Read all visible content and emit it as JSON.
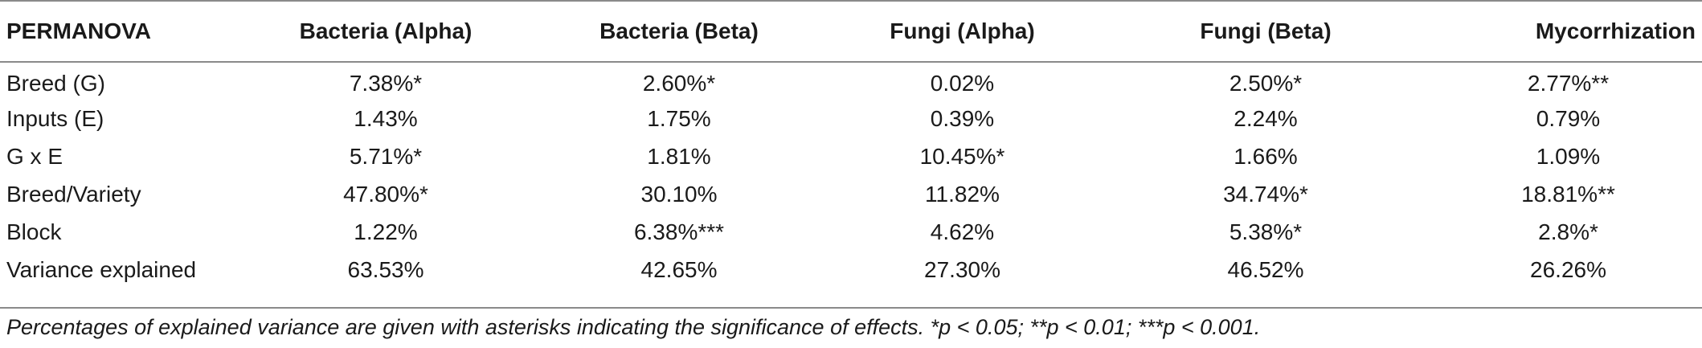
{
  "table": {
    "columns": [
      "PERMANOVA",
      "Bacteria (Alpha)",
      "Bacteria (Beta)",
      "Fungi (Alpha)",
      "Fungi (Beta)",
      "Mycorrhization"
    ],
    "rows": [
      [
        "Breed (G)",
        "7.38%*",
        "2.60%*",
        "0.02%",
        "2.50%*",
        "2.77%**"
      ],
      [
        "Inputs (E)",
        "1.43%",
        "1.75%",
        "0.39%",
        "2.24%",
        "0.79%"
      ],
      [
        "G x E",
        "5.71%*",
        "1.81%",
        "10.45%*",
        "1.66%",
        "1.09%"
      ],
      [
        "Breed/Variety",
        "47.80%*",
        "30.10%",
        "11.82%",
        "34.74%*",
        "18.81%**"
      ],
      [
        "Block",
        "1.22%",
        "6.38%***",
        "4.62%",
        "5.38%*",
        "2.8%*"
      ],
      [
        "Variance explained",
        "63.53%",
        "42.65%",
        "27.30%",
        "46.52%",
        "26.26%"
      ]
    ]
  },
  "footnote": "Percentages of explained variance are given with asterisks indicating the significance of effects. *p < 0.05; **p < 0.01; ***p < 0.001."
}
